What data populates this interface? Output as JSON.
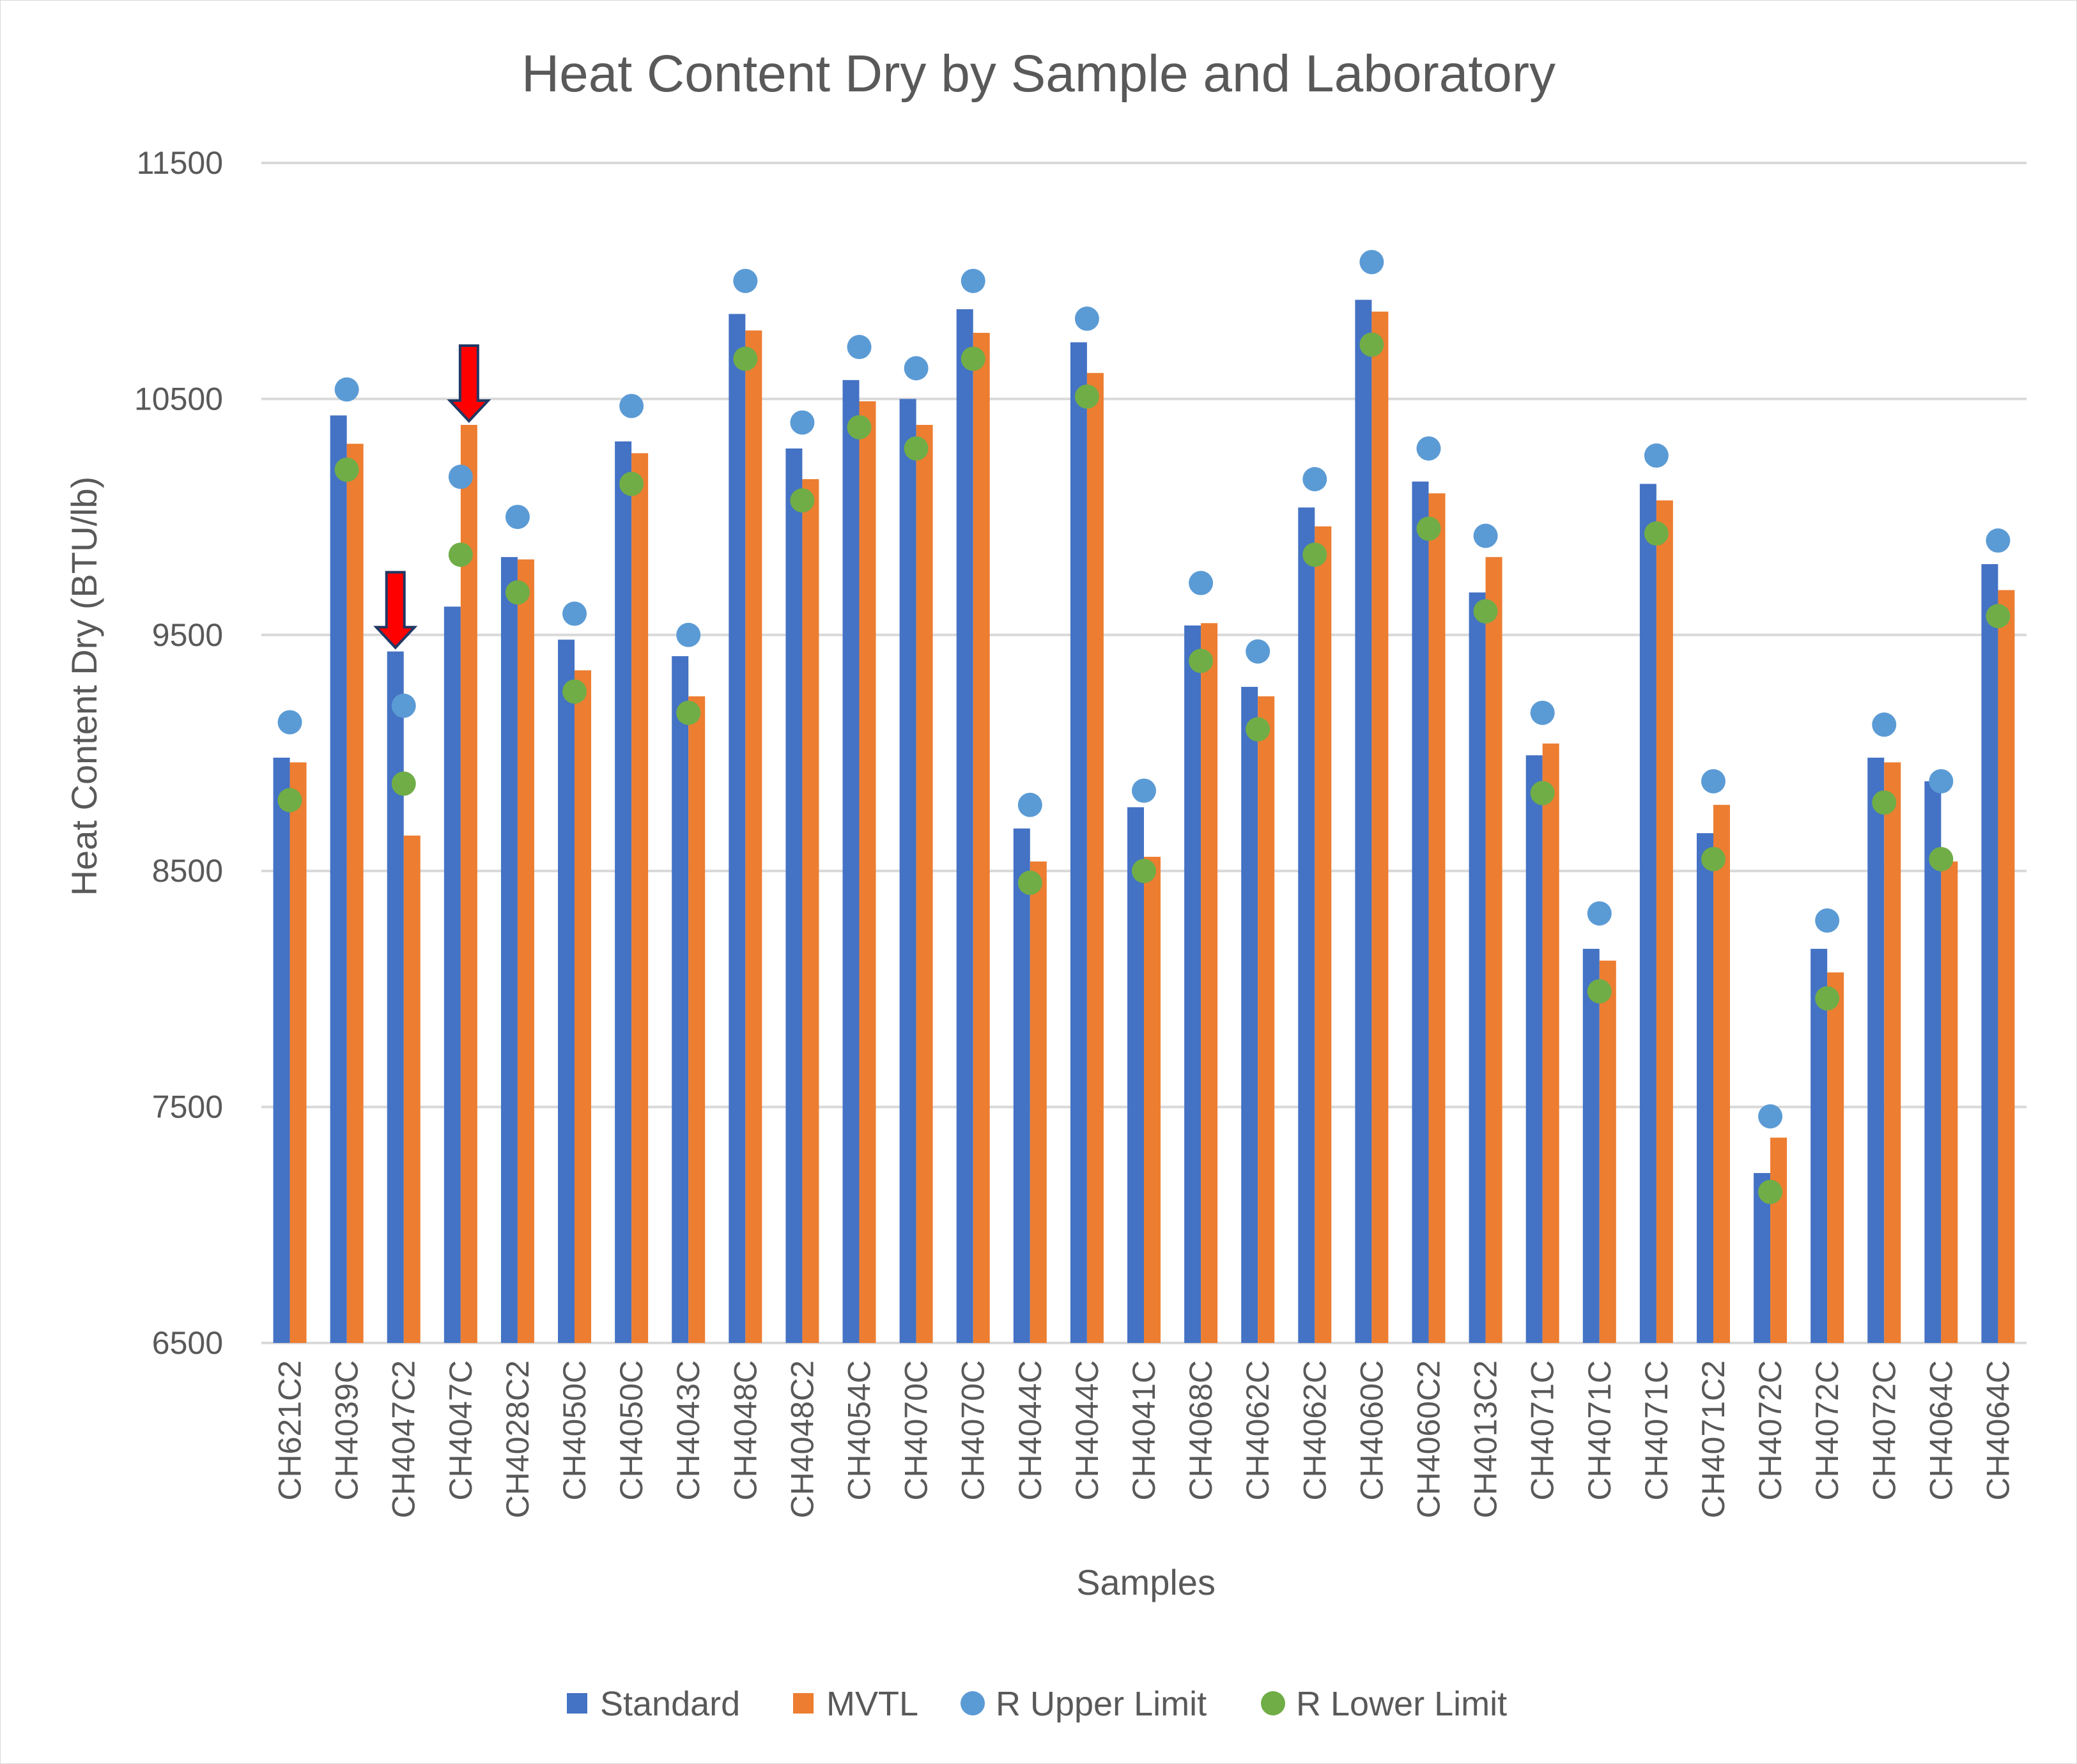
{
  "chart_data": {
    "type": "bar",
    "title": "Heat Content Dry by Sample and Laboratory",
    "xlabel": "Samples",
    "ylabel": "Heat Content Dry (BTU/lb)",
    "ylim": [
      6500,
      11500
    ],
    "yticks": [
      6500,
      7500,
      8500,
      9500,
      10500,
      11500
    ],
    "grid": true,
    "legend_position": "bottom",
    "categories": [
      "CH621C2",
      "CH4039C",
      "CH4047C2",
      "CH4047C",
      "CH4028C2",
      "CH4050C",
      "CH4050C",
      "CH4043C",
      "CH4048C",
      "CH4048C2",
      "CH4054C",
      "CH4070C",
      "CH4070C",
      "CH4044C",
      "CH4044C",
      "CH4041C",
      "CH4068C",
      "CH4062C",
      "CH4062C",
      "CH4060C",
      "CH4060C2",
      "CH4013C2",
      "CH4071C",
      "CH4071C",
      "CH4071C",
      "CH4071C2",
      "CH4072C",
      "CH4072C",
      "CH4072C",
      "CH4064C",
      "CH4064C"
    ],
    "series": [
      {
        "name": "Standard",
        "kind": "bar",
        "color": "#4472c4",
        "values": [
          8980,
          10430,
          9430,
          9620,
          9830,
          9480,
          10320,
          9410,
          10860,
          10290,
          10580,
          10500,
          10880,
          8680,
          10740,
          8770,
          9540,
          9280,
          10040,
          10920,
          10150,
          9680,
          8990,
          8170,
          10140,
          8660,
          7220,
          8170,
          8980,
          8880,
          9800
        ]
      },
      {
        "name": "MVTL",
        "kind": "bar",
        "color": "#ed7d31",
        "values": [
          8960,
          10310,
          8650,
          10390,
          9820,
          9350,
          10270,
          9240,
          10790,
          10160,
          10490,
          10390,
          10780,
          8540,
          10610,
          8560,
          9550,
          9240,
          9960,
          10870,
          10100,
          9830,
          9040,
          8120,
          10070,
          8780,
          7370,
          8070,
          8960,
          8540,
          9690
        ]
      },
      {
        "name": "R Upper Limit",
        "kind": "scatter",
        "color": "#5b9bd5",
        "values": [
          9130,
          10540,
          9200,
          10170,
          10000,
          9590,
          10470,
          9500,
          11000,
          10400,
          10720,
          10630,
          11000,
          8780,
          10840,
          8840,
          9720,
          9430,
          10160,
          11080,
          10290,
          9920,
          9170,
          8320,
          10260,
          8880,
          7460,
          8290,
          9120,
          8880,
          9900
        ]
      },
      {
        "name": "R Lower Limit",
        "kind": "scatter",
        "color": "#70ad47",
        "values": [
          8800,
          10200,
          8870,
          9840,
          9680,
          9260,
          10140,
          9170,
          10670,
          10070,
          10380,
          10290,
          10670,
          8450,
          10510,
          8500,
          9390,
          9100,
          9840,
          10730,
          9950,
          9600,
          8830,
          7990,
          9930,
          8550,
          7140,
          7960,
          8790,
          8550,
          9580
        ]
      }
    ],
    "annotations": [
      {
        "type": "arrow",
        "direction": "down",
        "color": "#ff0000",
        "category_index": 2,
        "points_to": "Standard",
        "value": 9430
      },
      {
        "type": "arrow",
        "direction": "down",
        "color": "#ff0000",
        "category_index": 3,
        "points_to": "MVTL",
        "value": 10390
      }
    ]
  }
}
